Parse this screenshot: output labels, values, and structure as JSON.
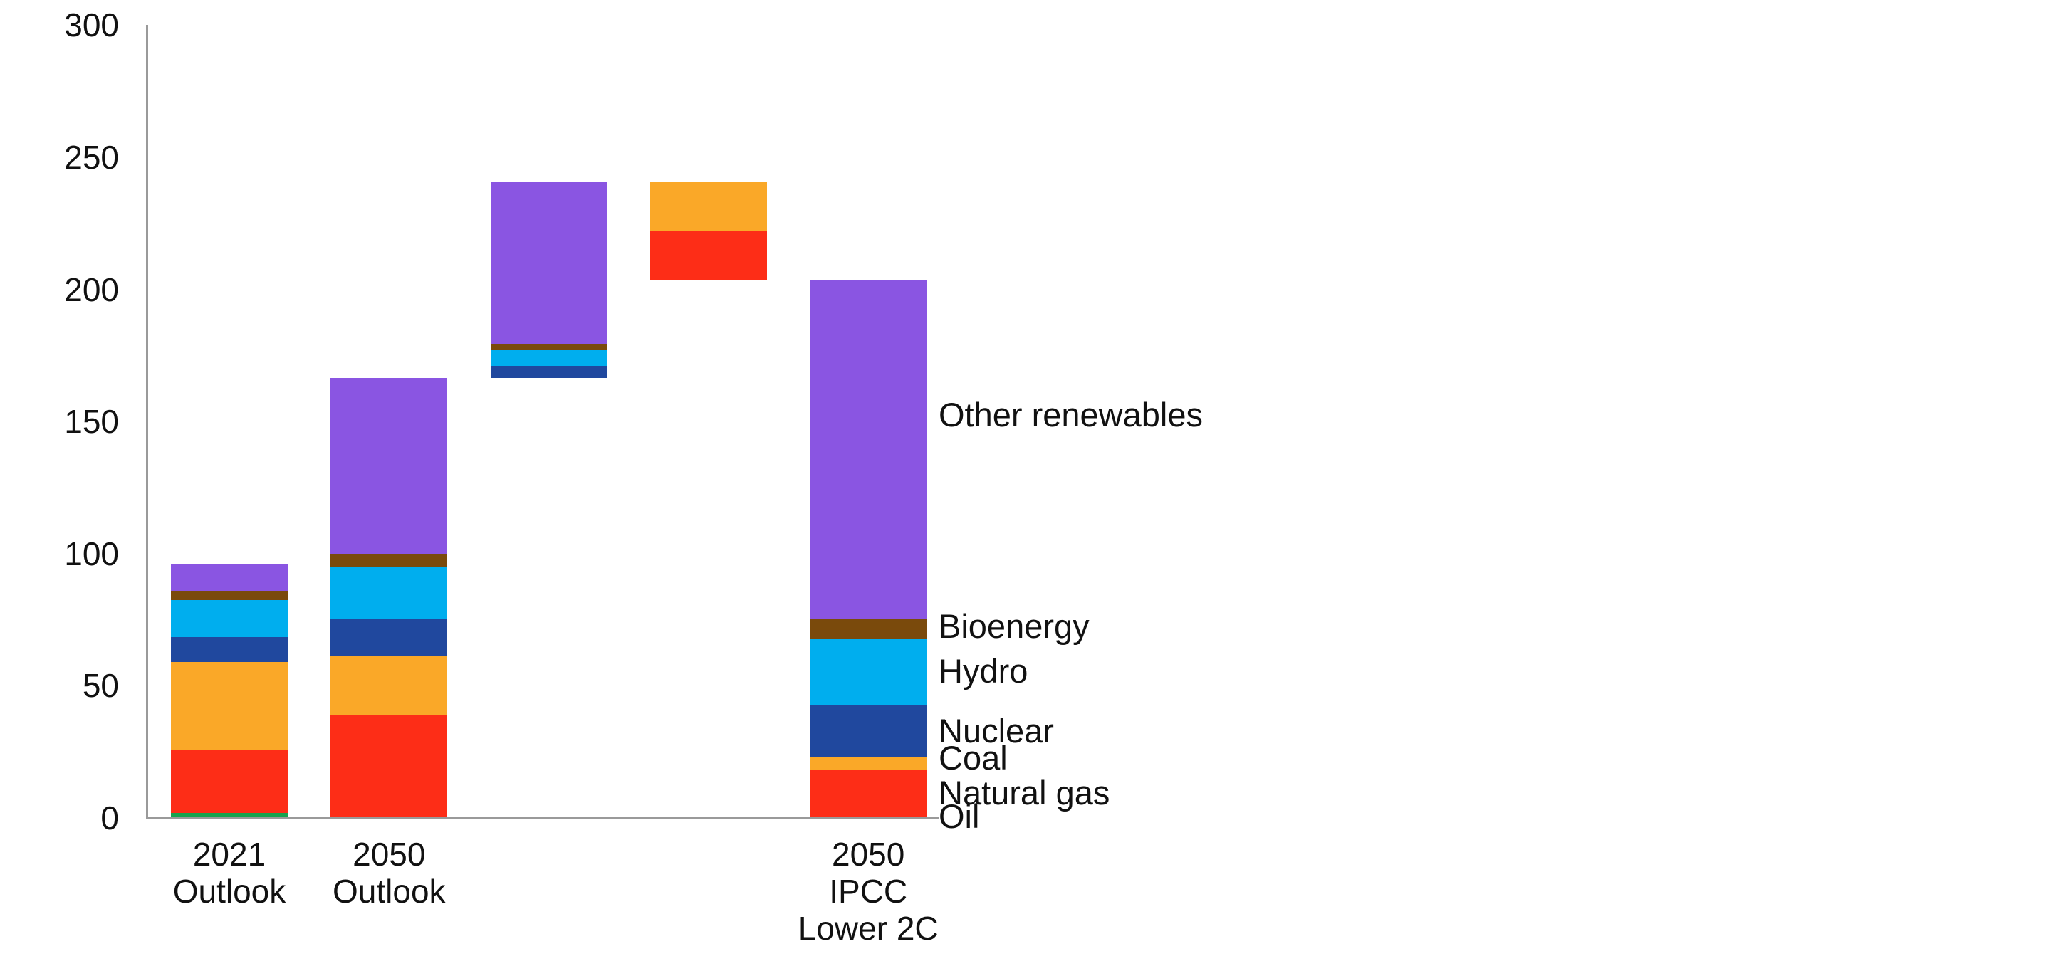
{
  "chart_data": {
    "type": "bar",
    "variant": "stacked-waterfall",
    "title": "",
    "xlabel": "",
    "ylabel": "",
    "ylim": [
      0,
      300
    ],
    "yticks": [
      0,
      50,
      100,
      150,
      200,
      250,
      300
    ],
    "grid": false,
    "legend_position": "right-of-last-bar",
    "axis_color": "#9a9a9a",
    "text_color": "#111111",
    "background_color": "#ffffff",
    "series": [
      {
        "name": "Oil",
        "color": "#16a34e"
      },
      {
        "name": "Natural gas",
        "color": "#fd2d17"
      },
      {
        "name": "Coal",
        "color": "#faa828"
      },
      {
        "name": "Nuclear",
        "color": "#20489e"
      },
      {
        "name": "Hydro",
        "color": "#00aeee"
      },
      {
        "name": "Bioenergy",
        "color": "#7a4a0c"
      },
      {
        "name": "Other renewables",
        "color": "#8a55e2"
      }
    ],
    "columns": [
      {
        "label_lines": [
          "2021",
          "Outlook"
        ],
        "base": 0,
        "segments": [
          [
            "Oil",
            2
          ],
          [
            "Natural gas",
            23.5
          ],
          [
            "Coal",
            33.5
          ],
          [
            "Nuclear",
            9.5
          ],
          [
            "Hydro",
            14
          ],
          [
            "Bioenergy",
            3.5
          ],
          [
            "Other renewables",
            10
          ]
        ],
        "total": 96
      },
      {
        "label_lines": [
          "2050",
          "Outlook"
        ],
        "base": 0,
        "segments": [
          [
            "Natural gas",
            39
          ],
          [
            "Coal",
            22.5
          ],
          [
            "Nuclear",
            14
          ],
          [
            "Hydro",
            19.5
          ],
          [
            "Bioenergy",
            5
          ],
          [
            "Other renewables",
            66.5
          ]
        ],
        "total": 166.5
      },
      {
        "label_lines": [],
        "base": 166.5,
        "segments": [
          [
            "Nuclear",
            4.5
          ],
          [
            "Hydro",
            6
          ],
          [
            "Bioenergy",
            2.5
          ],
          [
            "Other renewables",
            61
          ]
        ],
        "total": 240.5
      },
      {
        "label_lines": [],
        "base": 203.5,
        "segments": [
          [
            "Natural gas",
            18.5
          ],
          [
            "Coal",
            18.5
          ]
        ],
        "total": 240.5
      },
      {
        "label_lines": [
          "2050",
          "IPCC",
          "Lower 2C"
        ],
        "base": 0,
        "segments": [
          [
            "Natural gas",
            18
          ],
          [
            "Coal",
            5
          ],
          [
            "Nuclear",
            19.5
          ],
          [
            "Hydro",
            25.5
          ],
          [
            "Bioenergy",
            7.5
          ],
          [
            "Other renewables",
            128
          ]
        ],
        "total": 203.5
      }
    ],
    "series_labels": [
      {
        "text": "Other renewables",
        "anchor_value": 152.5
      },
      {
        "text": "Bioenergy",
        "anchor_value": 72.5
      },
      {
        "text": "Hydro",
        "anchor_value": 55.5
      },
      {
        "text": "Nuclear",
        "anchor_value": 33
      },
      {
        "text": "Coal",
        "anchor_value": 22.5
      },
      {
        "text": "Natural gas",
        "anchor_value": 9.5
      },
      {
        "text": "Oil",
        "anchor_value": 0.5
      }
    ]
  }
}
